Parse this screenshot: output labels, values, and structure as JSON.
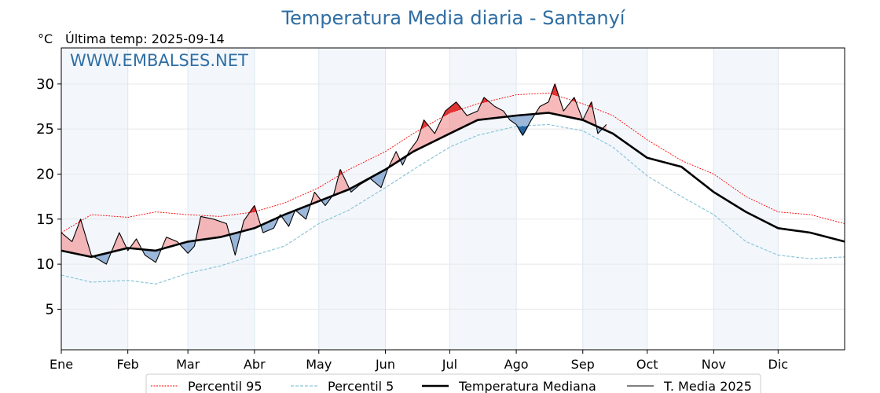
{
  "header": {
    "title": "Temperatura Media diaria - Santanyí",
    "unit": "°C",
    "last_temp": "Última temp: 2025-09-14",
    "watermark": "WWW.EMBALSES.NET"
  },
  "colors": {
    "p95": "#ff0000",
    "p5": "#8cc6d9",
    "median": "#000000",
    "mean2025": "#000000",
    "above_fill": "#f08080",
    "below_fill": "#4a7ebb",
    "month_band": "#f3f7fc",
    "title": "#2f6ea4"
  },
  "chart_data": {
    "type": "line",
    "title": "Temperatura Media diaria - Santanyí",
    "ylabel": "°C",
    "xlim": [
      1,
      366
    ],
    "ylim": [
      0.5,
      34.0
    ],
    "yticks": [
      5,
      10,
      15,
      20,
      25,
      30
    ],
    "months": [
      {
        "label": "Ene",
        "day": 1
      },
      {
        "label": "Feb",
        "day": 32
      },
      {
        "label": "Mar",
        "day": 60
      },
      {
        "label": "Abr",
        "day": 91
      },
      {
        "label": "May",
        "day": 121
      },
      {
        "label": "Jun",
        "day": 152
      },
      {
        "label": "Jul",
        "day": 182
      },
      {
        "label": "Ago",
        "day": 213
      },
      {
        "label": "Sep",
        "day": 244
      },
      {
        "label": "Oct",
        "day": 274
      },
      {
        "label": "Nov",
        "day": 305
      },
      {
        "label": "Dic",
        "day": 335
      }
    ],
    "grid": true,
    "legend_position": "bottom",
    "series": [
      {
        "name": "Percentil 95",
        "style": "dotted-red",
        "points": [
          [
            1,
            13.5
          ],
          [
            15,
            15.5
          ],
          [
            32,
            15.2
          ],
          [
            45,
            15.8
          ],
          [
            60,
            15.5
          ],
          [
            75,
            15.3
          ],
          [
            91,
            15.8
          ],
          [
            105,
            16.8
          ],
          [
            121,
            18.5
          ],
          [
            135,
            20.5
          ],
          [
            152,
            22.5
          ],
          [
            165,
            24.5
          ],
          [
            182,
            26.8
          ],
          [
            195,
            27.8
          ],
          [
            213,
            28.8
          ],
          [
            228,
            29.0
          ],
          [
            244,
            27.8
          ],
          [
            258,
            26.5
          ],
          [
            274,
            23.8
          ],
          [
            290,
            21.5
          ],
          [
            305,
            20.0
          ],
          [
            320,
            17.5
          ],
          [
            335,
            15.8
          ],
          [
            350,
            15.5
          ],
          [
            366,
            14.5
          ]
        ]
      },
      {
        "name": "Percentil 5",
        "style": "dashed-lightblue",
        "points": [
          [
            1,
            8.8
          ],
          [
            15,
            8.0
          ],
          [
            32,
            8.2
          ],
          [
            45,
            7.8
          ],
          [
            60,
            9.0
          ],
          [
            75,
            9.8
          ],
          [
            91,
            11.0
          ],
          [
            105,
            12.0
          ],
          [
            121,
            14.5
          ],
          [
            135,
            16.0
          ],
          [
            152,
            18.5
          ],
          [
            165,
            20.5
          ],
          [
            182,
            23.0
          ],
          [
            195,
            24.3
          ],
          [
            213,
            25.3
          ],
          [
            228,
            25.5
          ],
          [
            244,
            24.8
          ],
          [
            258,
            23.0
          ],
          [
            274,
            19.8
          ],
          [
            290,
            17.5
          ],
          [
            305,
            15.5
          ],
          [
            320,
            12.5
          ],
          [
            335,
            11.0
          ],
          [
            350,
            10.6
          ],
          [
            366,
            10.8
          ]
        ]
      },
      {
        "name": "Temperatura Mediana",
        "style": "thick-black",
        "points": [
          [
            1,
            11.5
          ],
          [
            15,
            10.8
          ],
          [
            32,
            11.8
          ],
          [
            45,
            11.5
          ],
          [
            60,
            12.5
          ],
          [
            75,
            13.0
          ],
          [
            91,
            14.0
          ],
          [
            105,
            15.5
          ],
          [
            121,
            17.0
          ],
          [
            135,
            18.3
          ],
          [
            152,
            20.5
          ],
          [
            165,
            22.5
          ],
          [
            182,
            24.5
          ],
          [
            195,
            26.0
          ],
          [
            213,
            26.5
          ],
          [
            228,
            26.8
          ],
          [
            244,
            26.0
          ],
          [
            258,
            24.5
          ],
          [
            274,
            21.8
          ],
          [
            290,
            20.8
          ],
          [
            305,
            18.0
          ],
          [
            320,
            15.8
          ],
          [
            335,
            14.0
          ],
          [
            350,
            13.5
          ],
          [
            366,
            12.5
          ]
        ]
      },
      {
        "name": "T. Media 2025",
        "style": "thin-black",
        "points": [
          [
            1,
            13.5
          ],
          [
            6,
            12.5
          ],
          [
            10,
            15.0
          ],
          [
            15,
            11.0
          ],
          [
            22,
            10.0
          ],
          [
            28,
            13.5
          ],
          [
            32,
            11.5
          ],
          [
            36,
            12.8
          ],
          [
            40,
            11.0
          ],
          [
            45,
            10.2
          ],
          [
            50,
            13.0
          ],
          [
            55,
            12.5
          ],
          [
            60,
            11.2
          ],
          [
            63,
            12.0
          ],
          [
            66,
            15.3
          ],
          [
            72,
            15.0
          ],
          [
            78,
            14.5
          ],
          [
            82,
            11.0
          ],
          [
            86,
            14.8
          ],
          [
            91,
            16.5
          ],
          [
            95,
            13.5
          ],
          [
            100,
            14.0
          ],
          [
            103,
            15.5
          ],
          [
            107,
            14.2
          ],
          [
            110,
            16.0
          ],
          [
            115,
            15.0
          ],
          [
            119,
            18.0
          ],
          [
            124,
            16.5
          ],
          [
            128,
            17.8
          ],
          [
            131,
            20.5
          ],
          [
            136,
            18.0
          ],
          [
            140,
            18.8
          ],
          [
            145,
            19.5
          ],
          [
            150,
            18.5
          ],
          [
            153,
            20.5
          ],
          [
            157,
            22.5
          ],
          [
            160,
            21.0
          ],
          [
            163,
            22.5
          ],
          [
            167,
            23.8
          ],
          [
            170,
            26.0
          ],
          [
            175,
            24.5
          ],
          [
            180,
            27.0
          ],
          [
            185,
            28.0
          ],
          [
            190,
            26.5
          ],
          [
            195,
            27.0
          ],
          [
            198,
            28.5
          ],
          [
            203,
            27.5
          ],
          [
            207,
            27.0
          ],
          [
            210,
            26.0
          ],
          [
            213,
            25.5
          ],
          [
            216,
            24.3
          ],
          [
            220,
            26.0
          ],
          [
            224,
            27.5
          ],
          [
            228,
            28.0
          ],
          [
            231,
            30.0
          ],
          [
            235,
            27.0
          ],
          [
            240,
            28.5
          ],
          [
            244,
            26.0
          ],
          [
            248,
            28.0
          ],
          [
            251,
            24.5
          ],
          [
            255,
            25.5
          ]
        ]
      }
    ]
  },
  "legend": [
    {
      "label": "Percentil 95",
      "style": "dotted-red"
    },
    {
      "label": "Percentil 5",
      "style": "dashed-lightblue"
    },
    {
      "label": "Temperatura Mediana",
      "style": "thick-black"
    },
    {
      "label": "T. Media 2025",
      "style": "thin-black"
    }
  ]
}
